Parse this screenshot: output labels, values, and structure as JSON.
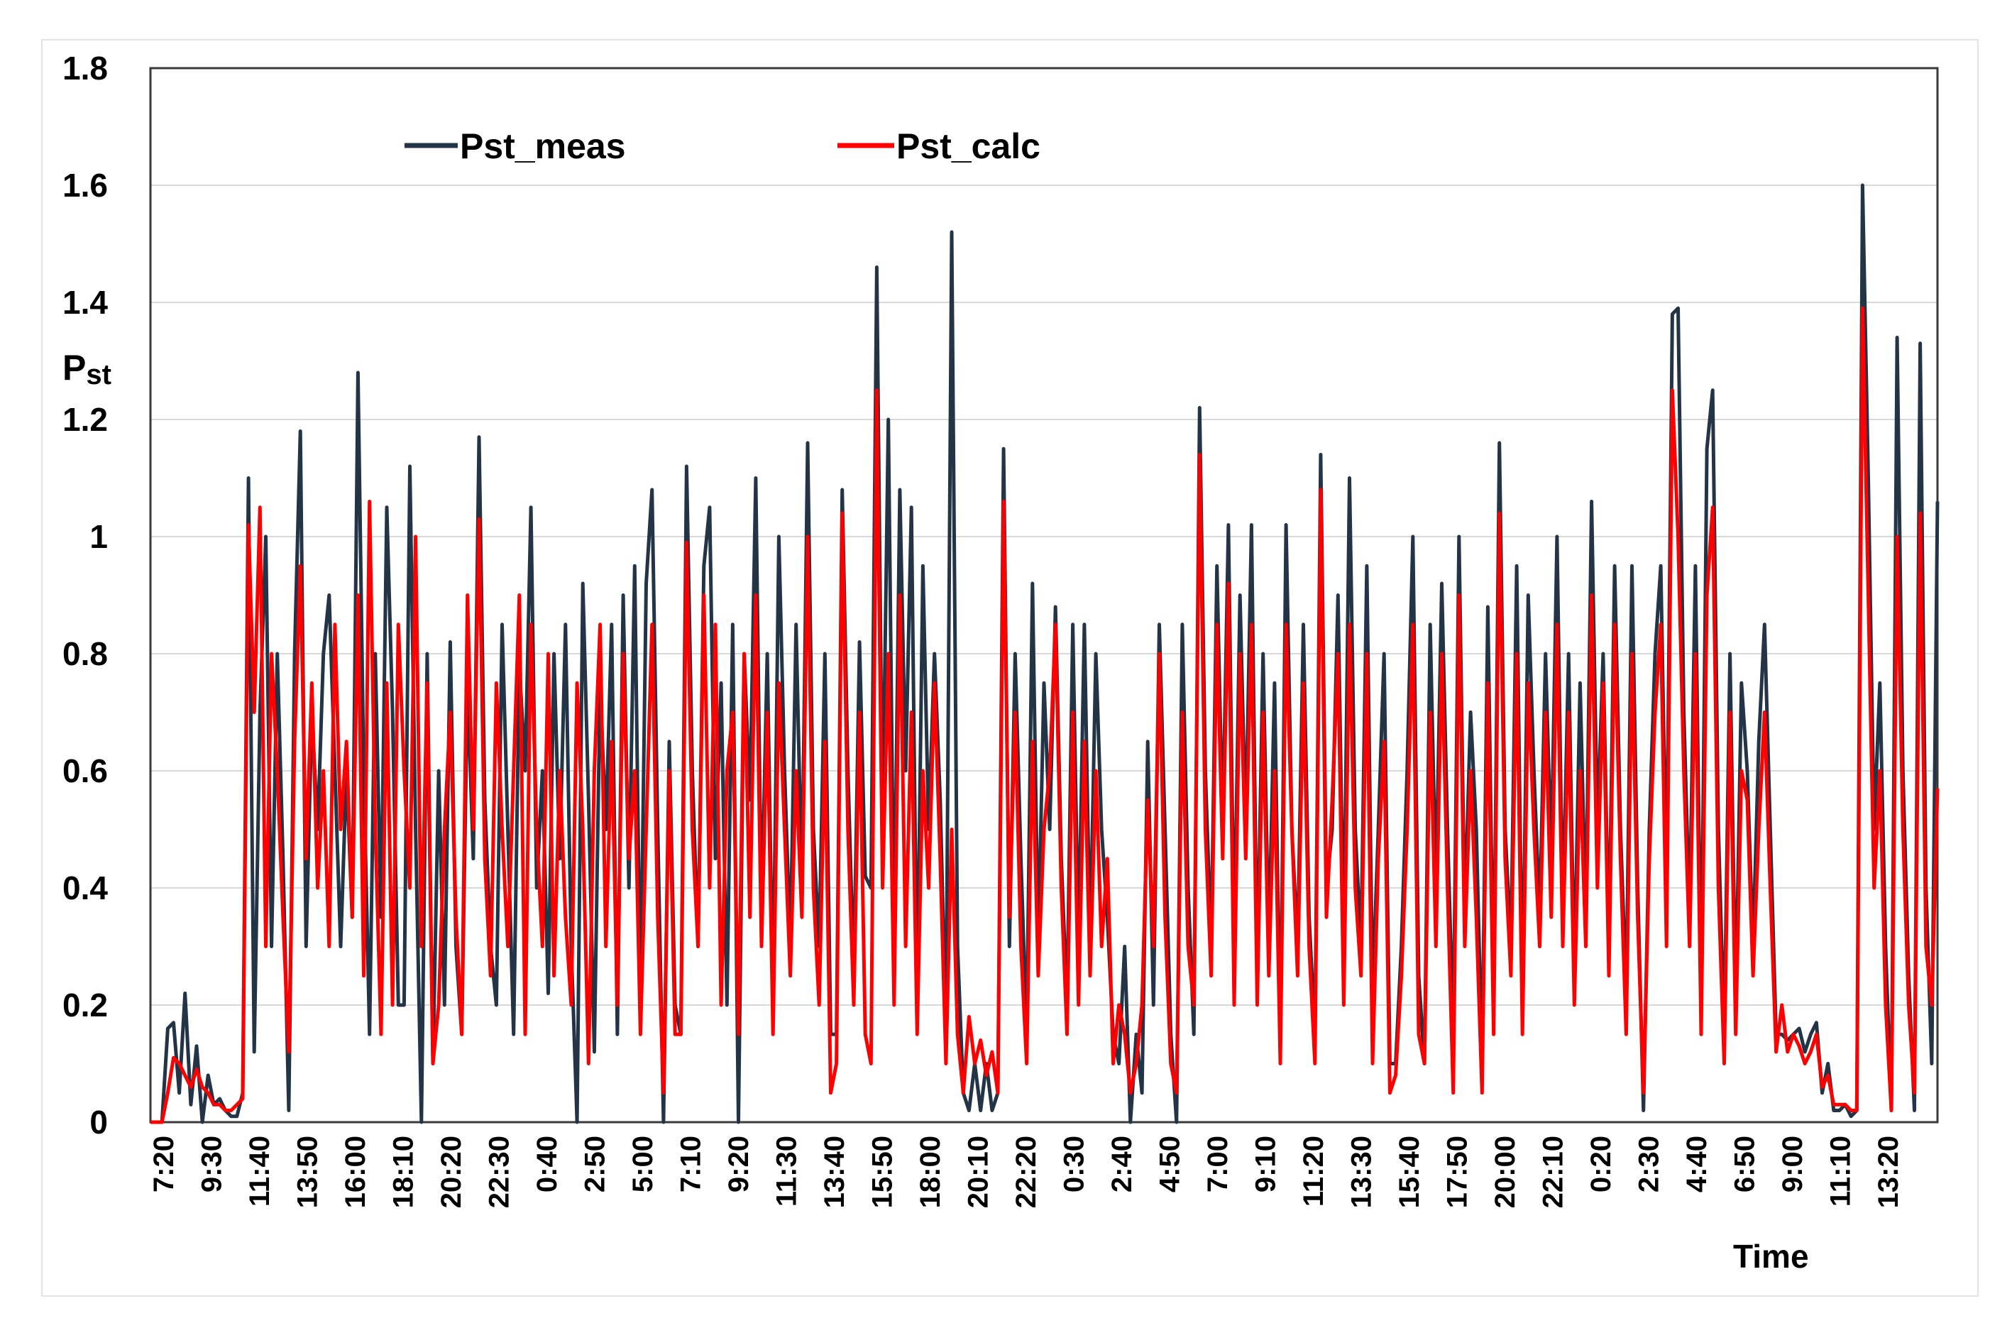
{
  "chart_data": {
    "type": "line",
    "title": "",
    "xlabel": "Time",
    "ylabel": {
      "main": "P",
      "sub": "st"
    },
    "ylim": [
      0,
      1.8
    ],
    "y_ticks": [
      "0",
      "0.2",
      "0.4",
      "0.6",
      "0.8",
      "1",
      "1.2",
      "1.4",
      "1.6",
      "1.8"
    ],
    "x_tick_labels": [
      "7:20",
      "9:30",
      "11:40",
      "13:50",
      "16:00",
      "18:10",
      "20:20",
      "22:30",
      "0:40",
      "2:50",
      "5:00",
      "7:10",
      "9:20",
      "11:30",
      "13:40",
      "15:50",
      "18:00",
      "20:10",
      "22:20",
      "0:30",
      "2:40",
      "4:50",
      "7:00",
      "9:10",
      "11:20",
      "13:30",
      "15:40",
      "17:50",
      "20:00",
      "22:10",
      "0:20",
      "2:30",
      "4:40",
      "6:50",
      "9:00",
      "11:10",
      "13:20"
    ],
    "grid": "horizontal",
    "legend": "top-left, inside plot",
    "series": [
      {
        "name": "Pst_meas",
        "color": "#243447",
        "values": [
          0,
          0,
          0,
          0.16,
          0.17,
          0.05,
          0.22,
          0.03,
          0.13,
          0,
          0.08,
          0.03,
          0.04,
          0.02,
          0.01,
          0.01,
          0.05,
          1.1,
          0.12,
          0.7,
          1,
          0.3,
          0.8,
          0.45,
          0.02,
          0.8,
          1.18,
          0.3,
          0.7,
          0.5,
          0.8,
          0.9,
          0.6,
          0.3,
          0.6,
          0.35,
          1.28,
          0.6,
          0.15,
          0.8,
          0.35,
          1.05,
          0.7,
          0.2,
          0.2,
          1.12,
          0.5,
          0,
          0.8,
          0.1,
          0.6,
          0.2,
          0.82,
          0.3,
          0.15,
          0.75,
          0.45,
          1.17,
          0.55,
          0.3,
          0.2,
          0.85,
          0.5,
          0.15,
          0.78,
          0.6,
          1.05,
          0.4,
          0.6,
          0.22,
          0.8,
          0.45,
          0.85,
          0.3,
          0,
          0.92,
          0.55,
          0.12,
          0.75,
          0.5,
          0.85,
          0.15,
          0.9,
          0.4,
          0.95,
          0.2,
          0.92,
          1.08,
          0.5,
          0,
          0.65,
          0.2,
          0.15,
          1.12,
          0.6,
          0.3,
          0.95,
          1.05,
          0.45,
          0.75,
          0.2,
          0.85,
          0,
          0.8,
          0.55,
          1.1,
          0.35,
          0.8,
          0.2,
          1,
          0.6,
          0.3,
          0.85,
          0.4,
          1.16,
          0.5,
          0.3,
          0.8,
          0.15,
          0.15,
          1.08,
          0.6,
          0.25,
          0.82,
          0.42,
          0.4,
          1.46,
          0.5,
          1.2,
          0.3,
          1.08,
          0.6,
          1.05,
          0.2,
          0.95,
          0.5,
          0.8,
          0.55,
          0.15,
          1.52,
          0.3,
          0.05,
          0.02,
          0.1,
          0.02,
          0.1,
          0.02,
          0.05,
          1.15,
          0.3,
          0.8,
          0.45,
          0.15,
          0.92,
          0.3,
          0.75,
          0.5,
          0.88,
          0.45,
          0.2,
          0.85,
          0.3,
          0.85,
          0.3,
          0.8,
          0.5,
          0.35,
          0.15,
          0.1,
          0.3,
          0,
          0.15,
          0.05,
          0.65,
          0.2,
          0.85,
          0.5,
          0.15,
          0,
          0.85,
          0.4,
          0.15,
          1.22,
          0.6,
          0.3,
          0.95,
          0.5,
          1.02,
          0.3,
          0.9,
          0.5,
          1.02,
          0.25,
          0.8,
          0.3,
          0.75,
          0.12,
          1.02,
          0.5,
          0.3,
          0.85,
          0.35,
          0.15,
          1.14,
          0.4,
          0.5,
          0.9,
          0.3,
          1.1,
          0.5,
          0.3,
          0.95,
          0.22,
          0.5,
          0.8,
          0.1,
          0.1,
          0.3,
          0.6,
          1,
          0.25,
          0.1,
          0.85,
          0.4,
          0.92,
          0.5,
          0.15,
          1,
          0.35,
          0.7,
          0.5,
          0.1,
          0.88,
          0.2,
          1.16,
          0.5,
          0.3,
          0.95,
          0.2,
          0.9,
          0.6,
          0.35,
          0.8,
          0.45,
          1,
          0.35,
          0.8,
          0.25,
          0.75,
          0.35,
          1.06,
          0.5,
          0.8,
          0.3,
          0.95,
          0.5,
          0.22,
          0.95,
          0.4,
          0.02,
          0.5,
          0.8,
          0.95,
          0.4,
          1.38,
          1.39,
          0.7,
          0.35,
          0.95,
          0.22,
          1.15,
          1.25,
          0.5,
          0.15,
          0.8,
          0.2,
          0.75,
          0.6,
          0.3,
          0.65,
          0.85,
          0.5,
          0.15,
          0.15,
          0.14,
          0.15,
          0.16,
          0.12,
          0.15,
          0.17,
          0.05,
          0.1,
          0.02,
          0.02,
          0.03,
          0.01,
          0.02,
          1.6,
          1.1,
          0.5,
          0.75,
          0.3,
          0.02,
          1.34,
          0.6,
          0.25,
          0.02,
          1.33,
          0.4,
          0.1,
          1.06
        ]
      },
      {
        "name": "Pst_calc",
        "color": "#ff0000",
        "values": [
          0,
          0,
          0,
          0.05,
          0.11,
          0.1,
          0.08,
          0.06,
          0.09,
          0.06,
          0.05,
          0.03,
          0.03,
          0.02,
          0.02,
          0.03,
          0.04,
          1.02,
          0.7,
          1.05,
          0.3,
          0.8,
          0.6,
          0.35,
          0.12,
          0.65,
          0.95,
          0.45,
          0.75,
          0.4,
          0.6,
          0.3,
          0.85,
          0.5,
          0.65,
          0.35,
          0.9,
          0.25,
          1.06,
          0.5,
          0.15,
          0.75,
          0.2,
          0.85,
          0.6,
          0.4,
          1,
          0.3,
          0.75,
          0.1,
          0.2,
          0.5,
          0.7,
          0.35,
          0.15,
          0.9,
          0.5,
          1.03,
          0.45,
          0.25,
          0.75,
          0.5,
          0.3,
          0.6,
          0.9,
          0.15,
          0.85,
          0.5,
          0.3,
          0.8,
          0.25,
          0.6,
          0.35,
          0.2,
          0.75,
          0.5,
          0.1,
          0.6,
          0.85,
          0.3,
          0.65,
          0.2,
          0.8,
          0.45,
          0.6,
          0.15,
          0.5,
          0.85,
          0.35,
          0.05,
          0.6,
          0.15,
          0.15,
          0.99,
          0.5,
          0.3,
          0.9,
          0.4,
          0.85,
          0.2,
          0.6,
          0.7,
          0.15,
          0.8,
          0.35,
          0.9,
          0.3,
          0.7,
          0.15,
          0.75,
          0.5,
          0.25,
          0.6,
          0.35,
          1,
          0.4,
          0.2,
          0.65,
          0.05,
          0.1,
          1.04,
          0.5,
          0.2,
          0.7,
          0.15,
          0.1,
          1.25,
          0.4,
          0.8,
          0.2,
          0.9,
          0.3,
          0.7,
          0.15,
          0.6,
          0.4,
          0.75,
          0.45,
          0.1,
          0.5,
          0.15,
          0.05,
          0.18,
          0.1,
          0.14,
          0.08,
          0.12,
          0.05,
          1.06,
          0.35,
          0.7,
          0.3,
          0.1,
          0.65,
          0.25,
          0.5,
          0.6,
          0.85,
          0.4,
          0.15,
          0.7,
          0.2,
          0.65,
          0.25,
          0.6,
          0.3,
          0.45,
          0.1,
          0.2,
          0.15,
          0.05,
          0.1,
          0.2,
          0.55,
          0.3,
          0.8,
          0.35,
          0.1,
          0.05,
          0.7,
          0.3,
          0.2,
          1.14,
          0.5,
          0.25,
          0.85,
          0.45,
          0.92,
          0.2,
          0.8,
          0.45,
          0.85,
          0.2,
          0.7,
          0.25,
          0.6,
          0.1,
          0.85,
          0.5,
          0.25,
          0.75,
          0.3,
          0.1,
          1.08,
          0.35,
          0.55,
          0.8,
          0.2,
          0.85,
          0.4,
          0.25,
          0.8,
          0.1,
          0.45,
          0.65,
          0.05,
          0.08,
          0.25,
          0.5,
          0.85,
          0.15,
          0.1,
          0.7,
          0.3,
          0.8,
          0.4,
          0.05,
          0.9,
          0.3,
          0.6,
          0.35,
          0.05,
          0.75,
          0.15,
          1.04,
          0.45,
          0.25,
          0.8,
          0.15,
          0.75,
          0.5,
          0.3,
          0.7,
          0.35,
          0.85,
          0.3,
          0.7,
          0.2,
          0.6,
          0.3,
          0.9,
          0.4,
          0.75,
          0.25,
          0.85,
          0.45,
          0.15,
          0.8,
          0.35,
          0.05,
          0.45,
          0.7,
          0.85,
          0.3,
          1.25,
          1,
          0.6,
          0.3,
          0.8,
          0.15,
          0.9,
          1.05,
          0.4,
          0.1,
          0.7,
          0.15,
          0.6,
          0.55,
          0.25,
          0.5,
          0.7,
          0.4,
          0.12,
          0.2,
          0.12,
          0.15,
          0.13,
          0.1,
          0.12,
          0.15,
          0.06,
          0.08,
          0.03,
          0.03,
          0.03,
          0.02,
          0.02,
          1.39,
          0.9,
          0.4,
          0.6,
          0.2,
          0.02,
          1,
          0.5,
          0.2,
          0.05,
          1.04,
          0.3,
          0.2,
          0.57
        ]
      }
    ]
  }
}
